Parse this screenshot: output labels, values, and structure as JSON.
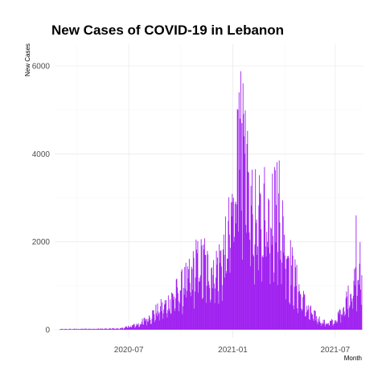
{
  "chart_data": {
    "type": "bar",
    "title": "New Cases of COVID-19 in Lebanon",
    "xlabel": "Month",
    "ylabel": "New Cases",
    "bar_color": "#a020f0",
    "x_range": [
      "2020-02-21",
      "2021-08-20"
    ],
    "ylim": [
      0,
      6200
    ],
    "yticks": [
      0,
      2000,
      4000,
      6000
    ],
    "xticks": [
      {
        "date": "2020-07-01",
        "label": "2020-07"
      },
      {
        "date": "2021-01-01",
        "label": "2021-01"
      },
      {
        "date": "2021-07-01",
        "label": "2021-07"
      }
    ],
    "grid": true,
    "trend_anchors": [
      {
        "date": "2020-03-01",
        "value": 15
      },
      {
        "date": "2020-04-01",
        "value": 20
      },
      {
        "date": "2020-05-01",
        "value": 25
      },
      {
        "date": "2020-06-15",
        "value": 30
      },
      {
        "date": "2020-07-01",
        "value": 80
      },
      {
        "date": "2020-07-20",
        "value": 150
      },
      {
        "date": "2020-08-05",
        "value": 320
      },
      {
        "date": "2020-08-20",
        "value": 500
      },
      {
        "date": "2020-09-05",
        "value": 650
      },
      {
        "date": "2020-09-20",
        "value": 900
      },
      {
        "date": "2020-10-05",
        "value": 1150
      },
      {
        "date": "2020-10-20",
        "value": 1450
      },
      {
        "date": "2020-11-05",
        "value": 1750
      },
      {
        "date": "2020-11-20",
        "value": 1550
      },
      {
        "date": "2020-12-05",
        "value": 1650
      },
      {
        "date": "2020-12-20",
        "value": 2100
      },
      {
        "date": "2020-12-31",
        "value": 3000
      },
      {
        "date": "2021-01-08",
        "value": 4300
      },
      {
        "date": "2021-01-16",
        "value": 4900
      },
      {
        "date": "2021-01-25",
        "value": 3800
      },
      {
        "date": "2021-02-05",
        "value": 3000
      },
      {
        "date": "2021-02-20",
        "value": 2800
      },
      {
        "date": "2021-03-05",
        "value": 3100
      },
      {
        "date": "2021-03-20",
        "value": 3200
      },
      {
        "date": "2021-04-01",
        "value": 2500
      },
      {
        "date": "2021-04-15",
        "value": 1600
      },
      {
        "date": "2021-05-01",
        "value": 900
      },
      {
        "date": "2021-05-15",
        "value": 500
      },
      {
        "date": "2021-06-01",
        "value": 280
      },
      {
        "date": "2021-06-15",
        "value": 170
      },
      {
        "date": "2021-07-01",
        "value": 220
      },
      {
        "date": "2021-07-15",
        "value": 600
      },
      {
        "date": "2021-07-31",
        "value": 1100
      },
      {
        "date": "2021-08-15",
        "value": 1400
      },
      {
        "date": "2021-08-20",
        "value": 1100
      }
    ],
    "notable_values": [
      {
        "date": "2021-01-15",
        "value": 5880
      },
      {
        "date": "2021-01-12",
        "value": 5400
      },
      {
        "date": "2021-01-10",
        "value": 5000
      },
      {
        "date": "2021-01-17",
        "value": 4700
      },
      {
        "date": "2021-01-14",
        "value": 4800
      },
      {
        "date": "2021-01-21",
        "value": 4400
      },
      {
        "date": "2021-03-24",
        "value": 3850
      },
      {
        "date": "2021-03-16",
        "value": 3700
      },
      {
        "date": "2021-03-12",
        "value": 3550
      },
      {
        "date": "2021-02-26",
        "value": 3700
      },
      {
        "date": "2021-08-07",
        "value": 2600
      },
      {
        "date": "2021-08-14",
        "value": 1990
      },
      {
        "date": "2020-11-12",
        "value": 2080
      },
      {
        "date": "2020-10-28",
        "value": 2050
      }
    ]
  }
}
